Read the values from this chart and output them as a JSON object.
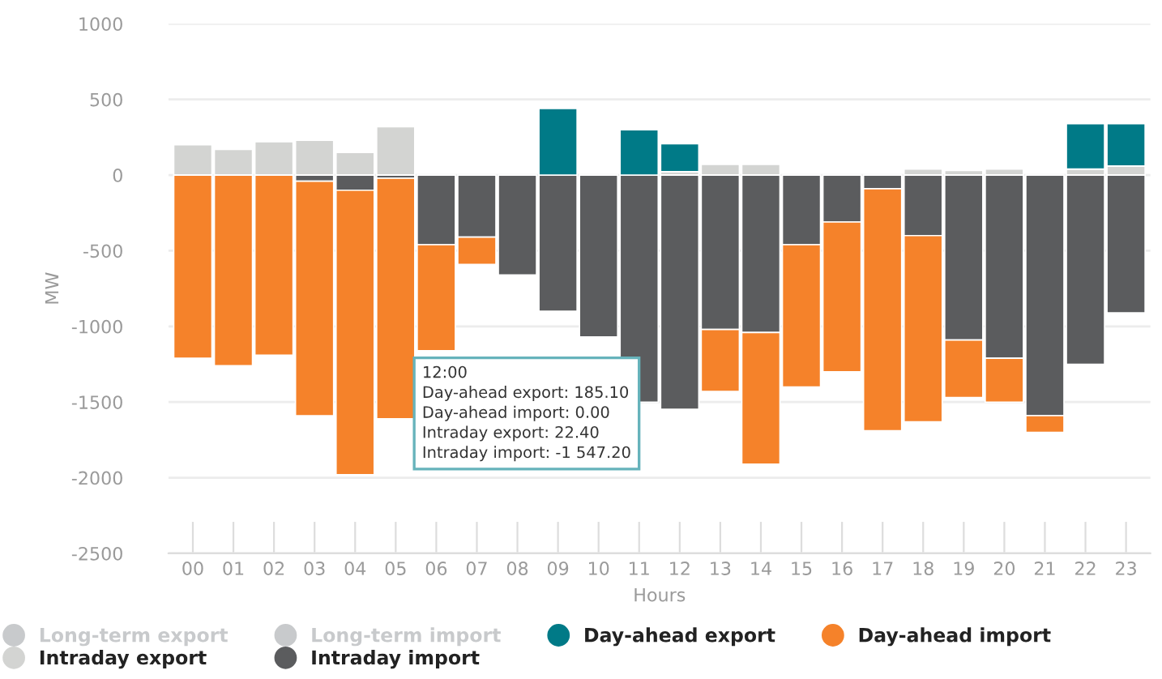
{
  "chart_data": {
    "type": "bar",
    "stacked": true,
    "xlabel": "Hours",
    "ylabel": "MW",
    "categories": [
      "00",
      "01",
      "02",
      "03",
      "04",
      "05",
      "06",
      "07",
      "08",
      "09",
      "10",
      "11",
      "12",
      "13",
      "14",
      "15",
      "16",
      "17",
      "18",
      "19",
      "20",
      "21",
      "22",
      "23"
    ],
    "series": [
      {
        "name": "Long-term export",
        "color": "#c8cacc",
        "values": [
          null,
          null,
          null,
          null,
          null,
          null,
          null,
          null,
          null,
          null,
          null,
          null,
          null,
          null,
          null,
          null,
          null,
          null,
          null,
          null,
          null,
          null,
          null,
          null
        ]
      },
      {
        "name": "Intraday export",
        "color": "#d3d4d2",
        "values": [
          200,
          170,
          220,
          230,
          150,
          320,
          null,
          null,
          null,
          null,
          null,
          null,
          22.4,
          70,
          70,
          null,
          null,
          null,
          40,
          30,
          40,
          null,
          40,
          60
        ]
      },
      {
        "name": "Long-term import",
        "color": "#c8cacc",
        "values": [
          null,
          null,
          null,
          null,
          null,
          null,
          null,
          null,
          null,
          null,
          null,
          null,
          null,
          null,
          null,
          null,
          null,
          null,
          null,
          null,
          null,
          null,
          null,
          null
        ]
      },
      {
        "name": "Intraday import",
        "color": "#5b5c5e",
        "values": [
          null,
          null,
          null,
          -40,
          -100,
          -20,
          -460,
          -410,
          -660,
          -900,
          -1070,
          -1500,
          -1547.2,
          -1020,
          -1040,
          -460,
          -310,
          -90,
          -400,
          -1090,
          -1210,
          -1590,
          -1250,
          -910
        ]
      },
      {
        "name": "Day-ahead export",
        "color": "#007a87",
        "values": [
          null,
          null,
          null,
          null,
          null,
          null,
          null,
          null,
          null,
          440,
          null,
          300,
          185.1,
          null,
          null,
          null,
          null,
          null,
          null,
          null,
          null,
          null,
          300,
          280
        ]
      },
      {
        "name": "Day-ahead import",
        "color": "#f5822a",
        "values": [
          -1210,
          -1260,
          -1190,
          -1550,
          -1880,
          -1590,
          -700,
          -180,
          null,
          null,
          null,
          null,
          0,
          -410,
          -870,
          -940,
          -990,
          -1600,
          -1230,
          -380,
          -290,
          -110,
          null,
          null
        ]
      }
    ],
    "ylim": [
      -2500,
      1000
    ],
    "yticks": [
      -2500,
      -2000,
      -1500,
      -1000,
      -500,
      0,
      500,
      1000
    ],
    "grid": "y",
    "legend": "bottom",
    "annotations": [
      "12:00",
      "Day-ahead export: 185.10",
      "Day-ahead import: 0.00",
      "Intraday export: 22.40",
      "Intraday import: -1 547.20"
    ]
  }
}
